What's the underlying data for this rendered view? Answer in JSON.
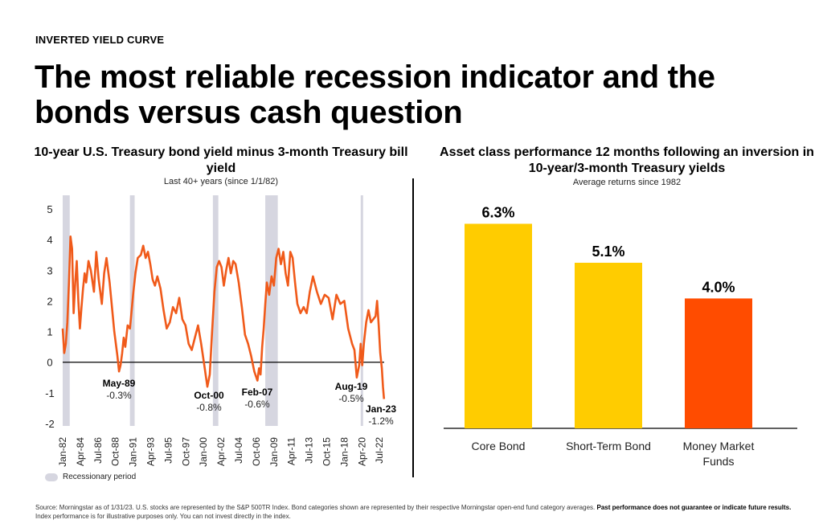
{
  "kicker": "INVERTED YIELD CURVE",
  "headline": "The most reliable recession indicator and the bonds versus cash question",
  "footer": {
    "text": "Source: Morningstar as of 1/31/23. U.S. stocks are represented by the S&P 500TR Index. Bond categories shown are represented by their respective Morningstar open-end fund category averages.",
    "bold": "Past performance does not guarantee or indicate future results.",
    "tail": "Index performance is for illustrative purposes only. You can not invest directly in the index."
  },
  "legend": {
    "label": "Recessionary period",
    "color": "#d6d6e0"
  },
  "colors": {
    "line": "#f05a1a",
    "yellow": "#ffcc00",
    "orange": "#ff4c00"
  },
  "chart_data": [
    {
      "type": "line",
      "title": "10-year U.S. Treasury bond yield minus 3-month Treasury bill yield",
      "subtitle": "Last 40+ years (since 1/1/82)",
      "ylim": [
        -2,
        5
      ],
      "yticks": [
        5,
        4,
        3,
        2,
        1,
        0,
        -1,
        -2
      ],
      "xlim": [
        1982.0,
        2023.1
      ],
      "xticks": [
        "Jan-82",
        "Apr-84",
        "Jul-86",
        "Oct-88",
        "Jan-91",
        "Apr-93",
        "Jul-95",
        "Oct-97",
        "Jan-00",
        "Apr-02",
        "Jul-04",
        "Oct-06",
        "Jan-09",
        "Apr-11",
        "Jul-13",
        "Oct-15",
        "Jan-18",
        "Apr-20",
        "Jul-22"
      ],
      "xtick_years": [
        1982.0,
        1984.25,
        1986.5,
        1988.75,
        1991.0,
        1993.25,
        1995.5,
        1997.75,
        2000.0,
        2002.25,
        2004.5,
        2006.75,
        2009.0,
        2011.25,
        2013.5,
        2015.75,
        2018.0,
        2020.25,
        2022.5
      ],
      "recessions": [
        [
          1982.0,
          1982.9
        ],
        [
          1990.6,
          1991.2
        ],
        [
          2001.2,
          2001.9
        ],
        [
          2007.9,
          2009.5
        ],
        [
          2020.1,
          2020.4
        ]
      ],
      "series": {
        "x": [
          1982.0,
          1982.2,
          1982.4,
          1982.6,
          1982.8,
          1983.0,
          1983.2,
          1983.4,
          1983.6,
          1983.8,
          1984.0,
          1984.2,
          1984.4,
          1984.6,
          1984.8,
          1985.0,
          1985.3,
          1985.6,
          1986.0,
          1986.3,
          1986.6,
          1987.0,
          1987.3,
          1987.6,
          1988.0,
          1988.3,
          1988.6,
          1989.0,
          1989.2,
          1989.4,
          1989.6,
          1989.8,
          1990.0,
          1990.3,
          1990.6,
          1991.0,
          1991.3,
          1991.6,
          1992.0,
          1992.3,
          1992.6,
          1992.9,
          1993.2,
          1993.5,
          1993.8,
          1994.1,
          1994.5,
          1994.9,
          1995.3,
          1995.7,
          1996.1,
          1996.5,
          1996.9,
          1997.3,
          1997.7,
          1998.1,
          1998.5,
          1998.9,
          1999.3,
          1999.7,
          2000.1,
          2000.5,
          2000.8,
          2001.1,
          2001.4,
          2001.7,
          2002.0,
          2002.3,
          2002.6,
          2002.9,
          2003.2,
          2003.5,
          2003.8,
          2004.1,
          2004.5,
          2004.9,
          2005.3,
          2005.7,
          2006.1,
          2006.5,
          2006.9,
          2007.1,
          2007.3,
          2007.5,
          2007.7,
          2007.9,
          2008.1,
          2008.4,
          2008.7,
          2009.0,
          2009.3,
          2009.6,
          2009.9,
          2010.2,
          2010.5,
          2010.8,
          2011.1,
          2011.4,
          2011.7,
          2012.0,
          2012.4,
          2012.8,
          2013.2,
          2013.6,
          2014.0,
          2014.5,
          2015.0,
          2015.5,
          2016.0,
          2016.5,
          2017.0,
          2017.5,
          2018.0,
          2018.5,
          2019.0,
          2019.3,
          2019.6,
          2019.9,
          2020.1,
          2020.3,
          2020.5,
          2020.8,
          2021.1,
          2021.4,
          2021.7,
          2022.0,
          2022.2,
          2022.4,
          2022.6,
          2022.8,
          2022.95,
          2023.08
        ],
        "y": [
          1.1,
          0.3,
          0.6,
          1.3,
          2.6,
          4.1,
          3.7,
          1.6,
          2.6,
          3.3,
          2.0,
          1.1,
          1.8,
          2.4,
          2.9,
          2.6,
          3.3,
          3.0,
          2.3,
          3.6,
          2.7,
          1.9,
          2.9,
          3.4,
          2.6,
          1.8,
          1.0,
          0.2,
          -0.3,
          -0.1,
          0.3,
          0.8,
          0.5,
          1.2,
          1.1,
          2.2,
          2.9,
          3.4,
          3.5,
          3.8,
          3.4,
          3.6,
          3.2,
          2.7,
          2.5,
          2.8,
          2.4,
          1.7,
          1.1,
          1.3,
          1.8,
          1.6,
          2.1,
          1.4,
          1.2,
          0.6,
          0.4,
          0.8,
          1.2,
          0.6,
          -0.1,
          -0.8,
          -0.4,
          1.0,
          2.3,
          3.1,
          3.3,
          3.1,
          2.5,
          3.0,
          3.4,
          2.9,
          3.3,
          3.2,
          2.6,
          1.8,
          0.9,
          0.6,
          0.2,
          -0.3,
          -0.6,
          -0.2,
          -0.4,
          0.5,
          1.1,
          1.9,
          2.6,
          2.2,
          2.8,
          2.5,
          3.4,
          3.7,
          3.2,
          3.6,
          2.9,
          2.5,
          3.6,
          3.4,
          2.6,
          1.9,
          1.6,
          1.8,
          1.6,
          2.3,
          2.8,
          2.3,
          1.9,
          2.2,
          2.1,
          1.4,
          2.2,
          1.9,
          2.0,
          1.1,
          0.6,
          0.4,
          -0.5,
          -0.1,
          0.6,
          -0.1,
          0.6,
          1.3,
          1.7,
          1.3,
          1.4,
          1.5,
          2.0,
          1.2,
          0.3,
          -0.2,
          -0.8,
          -1.2
        ]
      },
      "annotations": [
        {
          "date": "May-89",
          "value": "-0.3%"
        },
        {
          "date": "Oct-00",
          "value": "-0.8%"
        },
        {
          "date": "Feb-07",
          "value": "-0.6%"
        },
        {
          "date": "Aug-19",
          "value": "-0.5%"
        },
        {
          "date": "Jan-23",
          "value": "-1.2%"
        }
      ]
    },
    {
      "type": "bar",
      "title": "Asset class performance 12 months following an inversion in 10-year/3-month Treasury yields",
      "subtitle": "Average returns since 1982",
      "ylim": [
        0,
        7.5
      ],
      "categories": [
        "Core Bond",
        "Short-Term Bond",
        "Money Market\nFunds"
      ],
      "values": [
        6.3,
        5.1,
        4.0
      ],
      "labels": [
        "6.3%",
        "5.1%",
        "4.0%"
      ],
      "bar_colors": [
        "#ffcc00",
        "#ffcc00",
        "#ff4c00"
      ]
    }
  ]
}
